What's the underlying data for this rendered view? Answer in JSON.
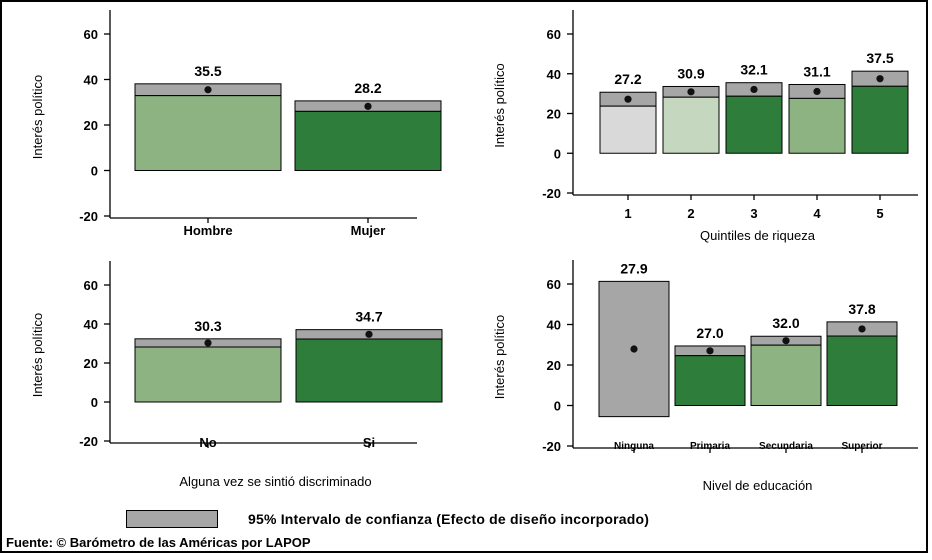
{
  "colors": {
    "confidence_interval": "#a6a6a6",
    "light_gray_bar": "#d9d9d9",
    "pale_green_bar": "#c5d8bf",
    "light_green_bar": "#8db383",
    "dark_green_bar": "#2e7d3a"
  },
  "legend": {
    "label": "95% Intervalo de confianza (Efecto de diseño incorporado)"
  },
  "source": "Fuente: © Barómetro de las Américas por LAPOP",
  "chart_data": [
    {
      "type": "bar",
      "ylabel": "Interés político",
      "xlabel": "",
      "ylim": [
        -20,
        60
      ],
      "yticks": [
        -20,
        0,
        20,
        40,
        60
      ],
      "categories": [
        "Hombre",
        "Mujer"
      ],
      "values": [
        35.5,
        28.2
      ],
      "labels": [
        "35.5",
        "28.2"
      ],
      "ci_low": [
        32.9,
        26.0
      ],
      "ci_high": [
        38.1,
        30.6
      ],
      "bar_colors": [
        "#8db383",
        "#2e7d3a"
      ]
    },
    {
      "type": "bar",
      "ylabel": "Interés político",
      "xlabel": "Quintiles de riqueza",
      "ylim": [
        -20,
        60
      ],
      "yticks": [
        -20,
        0,
        20,
        40,
        60
      ],
      "categories": [
        "1",
        "2",
        "3",
        "4",
        "5"
      ],
      "values": [
        27.2,
        30.9,
        32.1,
        31.1,
        37.5
      ],
      "labels": [
        "27.2",
        "30.9",
        "32.1",
        "31.1",
        "37.5"
      ],
      "ci_low": [
        23.7,
        28.2,
        28.7,
        27.6,
        33.7
      ],
      "ci_high": [
        30.7,
        33.6,
        35.5,
        34.6,
        41.3
      ],
      "bar_colors": [
        "#d9d9d9",
        "#c5d8bf",
        "#2e7d3a",
        "#8db383",
        "#2e7d3a"
      ]
    },
    {
      "type": "bar",
      "ylabel": "Interés político",
      "xlabel": "Alguna vez se sintió discriminado",
      "ylim": [
        -20,
        60
      ],
      "yticks": [
        -20,
        0,
        20,
        40,
        60
      ],
      "categories": [
        "No",
        "Si"
      ],
      "values": [
        30.3,
        34.7
      ],
      "labels": [
        "30.3",
        "34.7"
      ],
      "ci_low": [
        28.2,
        32.3
      ],
      "ci_high": [
        32.4,
        37.1
      ],
      "bar_colors": [
        "#8db383",
        "#2e7d3a"
      ]
    },
    {
      "type": "bar",
      "ylabel": "Interés político",
      "xlabel": "Nivel de educación",
      "ylim": [
        -20,
        60
      ],
      "yticks": [
        -20,
        0,
        20,
        40,
        60
      ],
      "categories": [
        "Ninguna",
        "Primaria",
        "Secundaria",
        "Superior"
      ],
      "values": [
        27.9,
        27.0,
        32.0,
        37.8
      ],
      "labels": [
        "27.9",
        "27.0",
        "32.0",
        "37.8"
      ],
      "ci_low": [
        -5.5,
        24.6,
        29.8,
        34.3
      ],
      "ci_high": [
        61.3,
        29.4,
        34.2,
        41.3
      ],
      "bar_colors": [
        "#a6a6a6",
        "#2e7d3a",
        "#8db383",
        "#2e7d3a"
      ]
    }
  ]
}
